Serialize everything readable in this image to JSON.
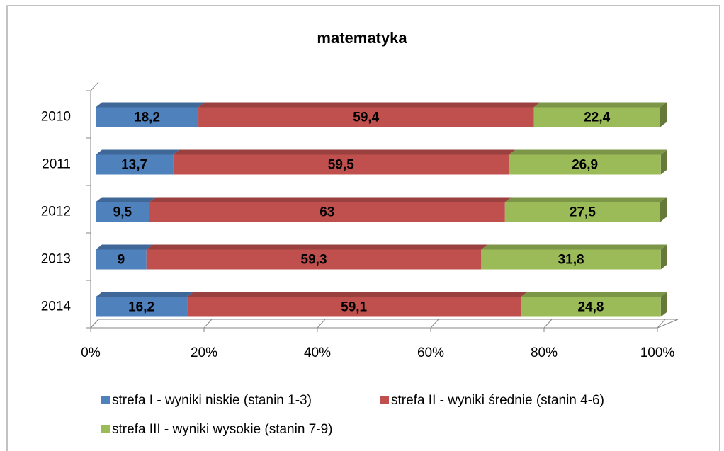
{
  "chart_data": {
    "type": "bar",
    "orientation": "horizontal",
    "stacked": true,
    "title": "matematyka",
    "categories": [
      "2010",
      "2011",
      "2012",
      "2013",
      "2014"
    ],
    "series": [
      {
        "name": "strefa I - wyniki niskie (stanin 1-3)",
        "color": "#4f81bd",
        "values": [
          18.2,
          13.7,
          9.5,
          9,
          16.2
        ],
        "value_labels": [
          "18,2",
          "13,7",
          "9,5",
          "9",
          "16,2"
        ]
      },
      {
        "name": "strefa II - wyniki średnie (stanin 4-6)",
        "color": "#c0504d",
        "values": [
          59.4,
          59.5,
          63,
          59.3,
          59.1
        ],
        "value_labels": [
          "59,4",
          "59,5",
          "63",
          "59,3",
          "59,1"
        ]
      },
      {
        "name": "strefa III - wyniki wysokie (stanin 7-9)",
        "color": "#9bbb59",
        "values": [
          22.4,
          26.9,
          27.5,
          31.8,
          24.8
        ],
        "value_labels": [
          "22,4",
          "26,9",
          "27,5",
          "31,8",
          "24,8"
        ]
      }
    ],
    "xlim": [
      0,
      100
    ],
    "xticks": [
      {
        "value": 0,
        "label": "0%"
      },
      {
        "value": 20,
        "label": "20%"
      },
      {
        "value": 40,
        "label": "40%"
      },
      {
        "value": 60,
        "label": "60%"
      },
      {
        "value": 80,
        "label": "80%"
      },
      {
        "value": 100,
        "label": "100%"
      }
    ]
  }
}
